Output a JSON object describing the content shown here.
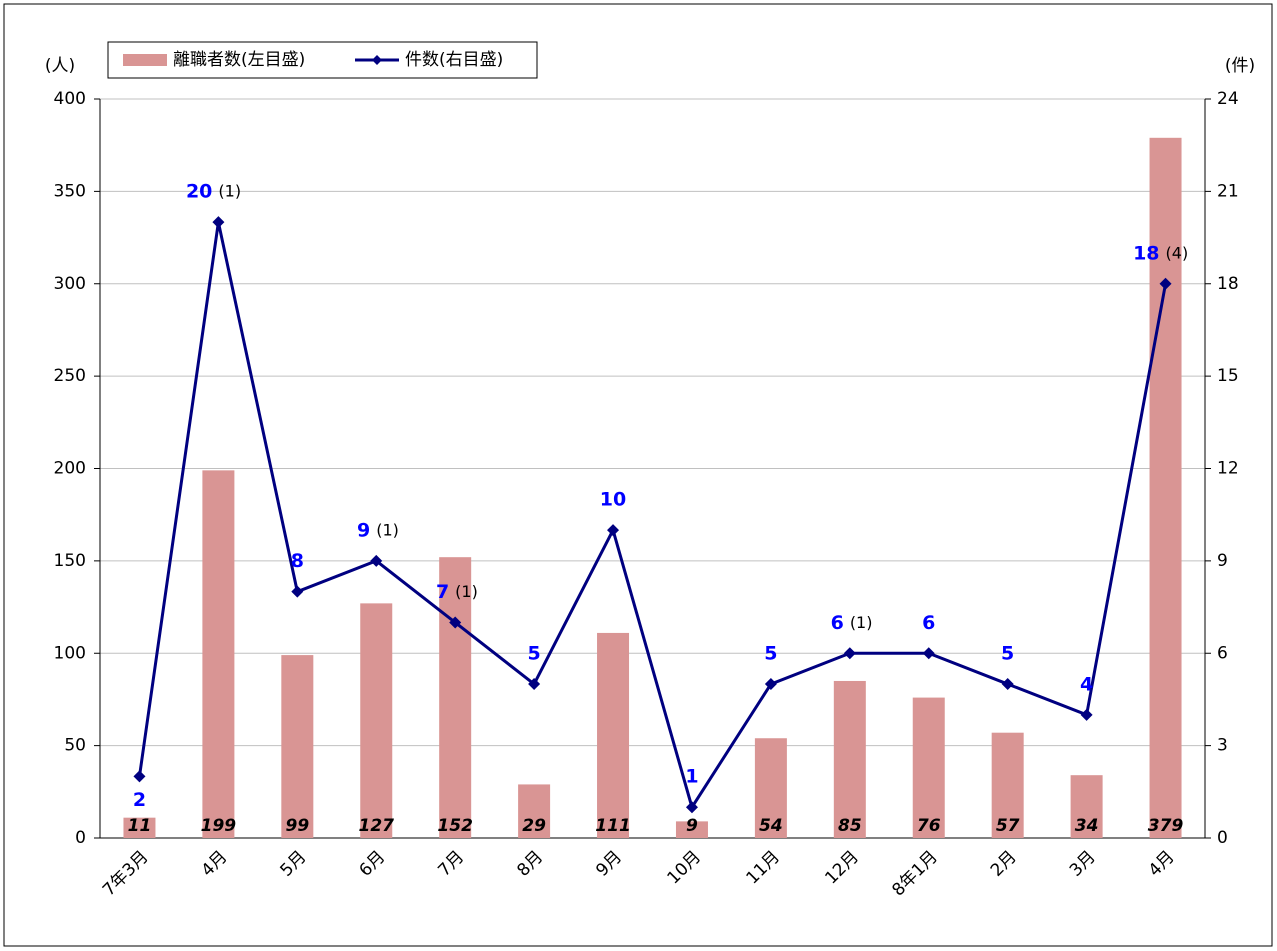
{
  "chart_data": {
    "type": "bar-line",
    "y_label": "(人)",
    "y2_label": "(件)",
    "categories": [
      "7年3月",
      "4月",
      "5月",
      "6月",
      "7月",
      "8月",
      "9月",
      "10月",
      "11月",
      "12月",
      "8年1月",
      "2月",
      "3月",
      "4月"
    ],
    "series": [
      {
        "name": "離職者数(左目盛)",
        "color": "#d99594",
        "type": "bar",
        "axis": "y",
        "values": [
          11,
          199,
          99,
          127,
          152,
          29,
          111,
          9,
          54,
          85,
          76,
          57,
          34,
          379
        ]
      },
      {
        "name": "件数(右目盛)",
        "color": "#000080",
        "type": "line",
        "axis": "y2",
        "label_color": "#0000ff",
        "values": [
          2,
          20,
          8,
          9,
          7,
          5,
          10,
          1,
          5,
          6,
          6,
          5,
          4,
          18
        ],
        "notes": [
          null,
          "(1)",
          null,
          "(1)",
          "(1)",
          null,
          null,
          null,
          null,
          "(1)",
          null,
          null,
          null,
          "(4)"
        ]
      }
    ],
    "ylim": [
      0,
      400
    ],
    "yticks": [
      0,
      50,
      100,
      150,
      200,
      250,
      300,
      350,
      400
    ],
    "y2lim": [
      0,
      24
    ],
    "y2ticks": [
      0,
      3,
      6,
      9,
      12,
      15,
      18,
      21,
      24
    ],
    "grid": true
  }
}
